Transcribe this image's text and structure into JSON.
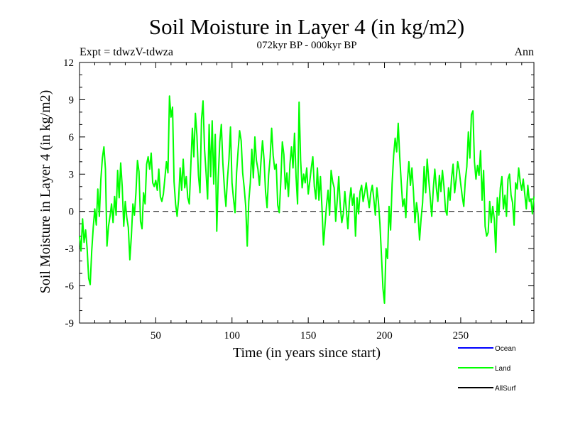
{
  "chart_data": {
    "type": "line",
    "title": "Soil Moisture in Layer 4 (in kg/m2)",
    "subtitle": "072kyr BP - 000kyr BP",
    "experiment_label": "Expt = tdwzV-tdwza",
    "season_label": "Ann",
    "xlabel": "Time (in years since start)",
    "ylabel": "Soil Moisture in Layer 4 (in kg/m2)",
    "xlim": [
      0,
      298
    ],
    "ylim": [
      -9,
      12
    ],
    "x_ticks": [
      50,
      100,
      150,
      200,
      250
    ],
    "y_ticks": [
      12,
      9,
      6,
      3,
      0,
      -3,
      -6,
      -9
    ],
    "zero_line": "dashed",
    "legend_position": "bottom-right",
    "series": [
      {
        "name": "Ocean",
        "color": "#0000ff",
        "values": []
      },
      {
        "name": "Land",
        "color": "#00ff00",
        "points": [
          [
            0,
            -2.0
          ],
          [
            1,
            -3.2
          ],
          [
            2,
            -0.6
          ],
          [
            3,
            -2.5
          ],
          [
            4,
            -1.5
          ],
          [
            5,
            -3.0
          ],
          [
            6,
            -5.4
          ],
          [
            7,
            -5.9
          ],
          [
            8,
            -3.2
          ],
          [
            9,
            -1.3
          ],
          [
            10,
            0.2
          ],
          [
            11,
            -1.1
          ],
          [
            12,
            1.8
          ],
          [
            13,
            -0.4
          ],
          [
            14,
            2.6
          ],
          [
            15,
            4.3
          ],
          [
            16,
            5.2
          ],
          [
            17,
            3.4
          ],
          [
            18,
            -2.8
          ],
          [
            19,
            -1.2
          ],
          [
            20,
            -0.4
          ],
          [
            21,
            0.6
          ],
          [
            22,
            -0.9
          ],
          [
            23,
            1.2
          ],
          [
            24,
            -0.3
          ],
          [
            25,
            3.3
          ],
          [
            26,
            1.1
          ],
          [
            27,
            3.9
          ],
          [
            28,
            2.0
          ],
          [
            29,
            -1.2
          ],
          [
            30,
            0.8
          ],
          [
            31,
            -0.5
          ],
          [
            32,
            -1.3
          ],
          [
            33,
            -3.9
          ],
          [
            34,
            -2.0
          ],
          [
            35,
            0.6
          ],
          [
            36,
            -0.3
          ],
          [
            37,
            1.5
          ],
          [
            38,
            4.1
          ],
          [
            39,
            3.2
          ],
          [
            40,
            -0.8
          ],
          [
            41,
            -1.4
          ],
          [
            42,
            1.5
          ],
          [
            43,
            0.6
          ],
          [
            44,
            3.8
          ],
          [
            45,
            4.4
          ],
          [
            46,
            3.4
          ],
          [
            47,
            4.7
          ],
          [
            48,
            2.3
          ],
          [
            49,
            2.0
          ],
          [
            50,
            2.5
          ],
          [
            51,
            1.7
          ],
          [
            52,
            3.4
          ],
          [
            53,
            1.2
          ],
          [
            54,
            0.8
          ],
          [
            55,
            1.4
          ],
          [
            56,
            2.7
          ],
          [
            57,
            4.0
          ],
          [
            58,
            3.1
          ],
          [
            59,
            9.3
          ],
          [
            60,
            7.6
          ],
          [
            61,
            8.4
          ],
          [
            62,
            2.4
          ],
          [
            63,
            0.6
          ],
          [
            64,
            -0.4
          ],
          [
            65,
            1.0
          ],
          [
            66,
            3.5
          ],
          [
            67,
            1.7
          ],
          [
            68,
            4.2
          ],
          [
            69,
            1.9
          ],
          [
            70,
            2.8
          ],
          [
            71,
            1.1
          ],
          [
            72,
            0.6
          ],
          [
            73,
            3.7
          ],
          [
            74,
            6.7
          ],
          [
            75,
            4.4
          ],
          [
            76,
            7.9
          ],
          [
            77,
            6.1
          ],
          [
            78,
            2.9
          ],
          [
            79,
            1.5
          ],
          [
            80,
            7.4
          ],
          [
            81,
            8.9
          ],
          [
            82,
            5.0
          ],
          [
            83,
            3.1
          ],
          [
            84,
            1.0
          ],
          [
            85,
            7.0
          ],
          [
            86,
            2.8
          ],
          [
            87,
            7.3
          ],
          [
            88,
            2.2
          ],
          [
            89,
            6.2
          ],
          [
            90,
            -1.6
          ],
          [
            91,
            2.8
          ],
          [
            92,
            5.6
          ],
          [
            93,
            7.0
          ],
          [
            94,
            3.9
          ],
          [
            95,
            1.9
          ],
          [
            96,
            0.4
          ],
          [
            97,
            2.6
          ],
          [
            98,
            4.2
          ],
          [
            99,
            6.8
          ],
          [
            100,
            2.3
          ],
          [
            101,
            1.0
          ],
          [
            102,
            -0.1
          ],
          [
            103,
            3.1
          ],
          [
            104,
            4.9
          ],
          [
            105,
            6.5
          ],
          [
            106,
            5.7
          ],
          [
            107,
            3.1
          ],
          [
            108,
            1.9
          ],
          [
            109,
            0.4
          ],
          [
            110,
            -2.8
          ],
          [
            111,
            0.8
          ],
          [
            112,
            2.3
          ],
          [
            113,
            5.0
          ],
          [
            114,
            2.7
          ],
          [
            115,
            6.0
          ],
          [
            116,
            4.1
          ],
          [
            117,
            3.4
          ],
          [
            118,
            2.1
          ],
          [
            119,
            4.0
          ],
          [
            120,
            5.7
          ],
          [
            121,
            4.2
          ],
          [
            122,
            1.6
          ],
          [
            123,
            0.3
          ],
          [
            124,
            2.9
          ],
          [
            125,
            4.3
          ],
          [
            126,
            6.7
          ],
          [
            127,
            4.5
          ],
          [
            128,
            3.4
          ],
          [
            129,
            3.8
          ],
          [
            130,
            0.5
          ],
          [
            131,
            -0.1
          ],
          [
            132,
            2.4
          ],
          [
            133,
            5.6
          ],
          [
            134,
            4.6
          ],
          [
            135,
            1.8
          ],
          [
            136,
            3.1
          ],
          [
            137,
            1.2
          ],
          [
            138,
            3.8
          ],
          [
            139,
            5.2
          ],
          [
            140,
            3.5
          ],
          [
            141,
            6.3
          ],
          [
            142,
            2.8
          ],
          [
            143,
            0.6
          ],
          [
            144,
            8.8
          ],
          [
            145,
            4.1
          ],
          [
            146,
            1.9
          ],
          [
            147,
            3.0
          ],
          [
            148,
            2.3
          ],
          [
            149,
            3.5
          ],
          [
            150,
            1.4
          ],
          [
            151,
            2.4
          ],
          [
            152,
            3.5
          ],
          [
            153,
            4.4
          ],
          [
            154,
            2.0
          ],
          [
            155,
            1.0
          ],
          [
            156,
            3.5
          ],
          [
            157,
            0.9
          ],
          [
            158,
            2.8
          ],
          [
            159,
            0.3
          ],
          [
            160,
            -2.7
          ],
          [
            161,
            -1.1
          ],
          [
            162,
            0.5
          ],
          [
            163,
            1.7
          ],
          [
            164,
            -0.3
          ],
          [
            165,
            3.3
          ],
          [
            166,
            2.4
          ],
          [
            167,
            1.9
          ],
          [
            168,
            -0.8
          ],
          [
            169,
            0.9
          ],
          [
            170,
            2.8
          ],
          [
            171,
            0.4
          ],
          [
            172,
            -0.9
          ],
          [
            173,
            -0.2
          ],
          [
            174,
            1.6
          ],
          [
            175,
            0.1
          ],
          [
            176,
            -1.4
          ],
          [
            177,
            0.8
          ],
          [
            178,
            1.9
          ],
          [
            179,
            0.5
          ],
          [
            180,
            1.4
          ],
          [
            181,
            -2.0
          ],
          [
            182,
            1.1
          ],
          [
            183,
            -0.2
          ],
          [
            184,
            1.6
          ],
          [
            185,
            2.1
          ],
          [
            186,
            0.8
          ],
          [
            187,
            1.5
          ],
          [
            188,
            2.3
          ],
          [
            189,
            1.2
          ],
          [
            190,
            0.3
          ],
          [
            191,
            1.5
          ],
          [
            192,
            2.1
          ],
          [
            193,
            1.0
          ],
          [
            194,
            -0.3
          ],
          [
            195,
            1.9
          ],
          [
            196,
            0.8
          ],
          [
            197,
            -1.0
          ],
          [
            198,
            -3.5
          ],
          [
            199,
            -6.2
          ],
          [
            200,
            -7.4
          ],
          [
            201,
            -3.0
          ],
          [
            202,
            -3.8
          ],
          [
            203,
            0.4
          ],
          [
            204,
            -1.5
          ],
          [
            205,
            2.2
          ],
          [
            206,
            4.5
          ],
          [
            207,
            5.9
          ],
          [
            208,
            4.8
          ],
          [
            209,
            7.1
          ],
          [
            210,
            4.4
          ],
          [
            211,
            2.3
          ],
          [
            212,
            0.4
          ],
          [
            213,
            1.0
          ],
          [
            214,
            -0.5
          ],
          [
            215,
            2.4
          ],
          [
            216,
            4.0
          ],
          [
            217,
            2.1
          ],
          [
            218,
            3.5
          ],
          [
            219,
            1.6
          ],
          [
            220,
            -0.9
          ],
          [
            221,
            0.7
          ],
          [
            222,
            -0.2
          ],
          [
            223,
            -2.3
          ],
          [
            224,
            -0.6
          ],
          [
            225,
            0.7
          ],
          [
            226,
            3.6
          ],
          [
            227,
            1.5
          ],
          [
            228,
            4.2
          ],
          [
            229,
            2.6
          ],
          [
            230,
            1.1
          ],
          [
            231,
            -0.4
          ],
          [
            232,
            1.8
          ],
          [
            233,
            3.4
          ],
          [
            234,
            1.9
          ],
          [
            235,
            0.8
          ],
          [
            236,
            2.9
          ],
          [
            237,
            1.6
          ],
          [
            238,
            3.3
          ],
          [
            239,
            2.0
          ],
          [
            240,
            0.1
          ],
          [
            241,
            -0.3
          ],
          [
            242,
            1.9
          ],
          [
            243,
            0.9
          ],
          [
            244,
            2.7
          ],
          [
            245,
            3.8
          ],
          [
            246,
            1.5
          ],
          [
            247,
            2.6
          ],
          [
            248,
            4.0
          ],
          [
            249,
            3.3
          ],
          [
            250,
            2.2
          ],
          [
            251,
            1.2
          ],
          [
            252,
            0.4
          ],
          [
            253,
            2.5
          ],
          [
            254,
            3.6
          ],
          [
            255,
            6.4
          ],
          [
            256,
            4.3
          ],
          [
            257,
            7.8
          ],
          [
            258,
            8.1
          ],
          [
            259,
            4.0
          ],
          [
            260,
            2.6
          ],
          [
            261,
            3.7
          ],
          [
            262,
            2.9
          ],
          [
            263,
            4.9
          ],
          [
            264,
            0.9
          ],
          [
            265,
            3.3
          ],
          [
            266,
            -1.2
          ],
          [
            267,
            -2.0
          ],
          [
            268,
            -1.7
          ],
          [
            269,
            0.8
          ],
          [
            270,
            -0.9
          ],
          [
            271,
            0.4
          ],
          [
            272,
            -0.6
          ],
          [
            273,
            -3.3
          ],
          [
            274,
            1.1
          ],
          [
            275,
            -0.3
          ],
          [
            276,
            1.9
          ],
          [
            277,
            2.8
          ],
          [
            278,
            0.2
          ],
          [
            279,
            1.3
          ],
          [
            280,
            -0.4
          ],
          [
            281,
            2.6
          ],
          [
            282,
            3.0
          ],
          [
            283,
            1.3
          ],
          [
            284,
            0.7
          ],
          [
            285,
            -1.1
          ],
          [
            286,
            2.3
          ],
          [
            287,
            1.8
          ],
          [
            288,
            3.5
          ],
          [
            289,
            2.4
          ],
          [
            290,
            1.7
          ],
          [
            291,
            2.6
          ],
          [
            292,
            1.4
          ],
          [
            293,
            0.2
          ],
          [
            294,
            2.1
          ],
          [
            295,
            0.8
          ],
          [
            296,
            1.0
          ],
          [
            297,
            -0.2
          ],
          [
            298,
            1.2
          ]
        ]
      },
      {
        "name": "AllSurf",
        "color": "#000000",
        "values": []
      }
    ]
  }
}
